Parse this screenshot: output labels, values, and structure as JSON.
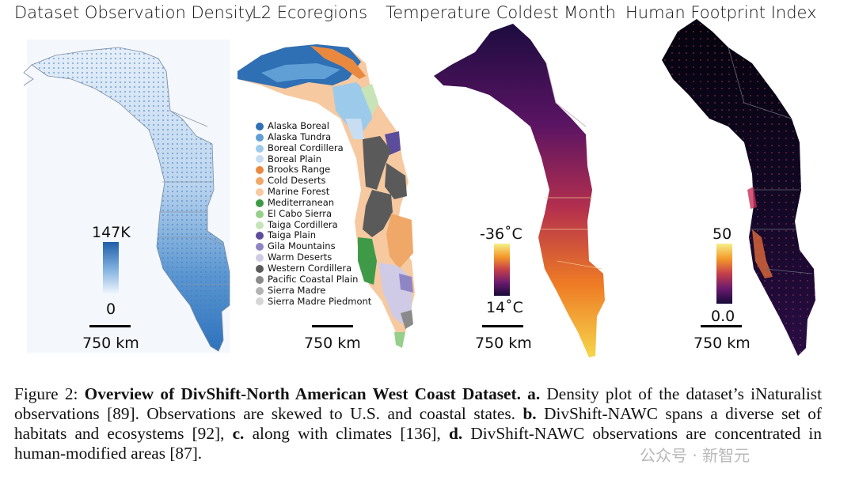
{
  "panels": [
    {
      "title": "Dataset Observation Density",
      "cbar_top": "147K",
      "cbar_bottom": "0",
      "scale": "750 km"
    },
    {
      "title": "L2 Ecoregions",
      "scale": "750 km"
    },
    {
      "title": "Temperature Coldest Month",
      "cbar_top": "-36˚C",
      "cbar_bottom": "14˚C",
      "scale": "750 km"
    },
    {
      "title": "Human Footprint Index",
      "cbar_top": "50",
      "cbar_bottom": "0.0",
      "scale": "750 km"
    }
  ],
  "legend": [
    {
      "label": "Alaska Boreal",
      "color": "#2f6fb4"
    },
    {
      "label": "Alaska Tundra",
      "color": "#5f9fd6"
    },
    {
      "label": "Boreal Cordillera",
      "color": "#9ccaea"
    },
    {
      "label": "Boreal Plain",
      "color": "#c9ddf2"
    },
    {
      "label": "Brooks Range",
      "color": "#e9893f"
    },
    {
      "label": "Cold Deserts",
      "color": "#f0a868"
    },
    {
      "label": "Marine Forest",
      "color": "#f6c9a0"
    },
    {
      "label": "Mediterranean",
      "color": "#3f9a48"
    },
    {
      "label": "El Cabo Sierra",
      "color": "#96cf8a"
    },
    {
      "label": "Taiga Cordillera",
      "color": "#c6e4b8"
    },
    {
      "label": "Taiga Plain",
      "color": "#5b4d9c"
    },
    {
      "label": "Gila Mountains",
      "color": "#8f84c4"
    },
    {
      "label": "Warm Deserts",
      "color": "#cfcbe6"
    },
    {
      "label": "Western Cordillera",
      "color": "#5a5a5a"
    },
    {
      "label": "Pacific Coastal Plain",
      "color": "#8a8a8a"
    },
    {
      "label": "Sierra Madre",
      "color": "#b4b4b4"
    },
    {
      "label": "Sierra Madre Piedmont",
      "color": "#d6d6d6"
    }
  ],
  "caption": {
    "figure_label": "Figure 2:",
    "bold_title": "Overview of DivShift-North American West Coast Dataset.",
    "a_label": "a.",
    "a_text": "Density plot of the dataset’s iNaturalist observations [89]. Observations are skewed to U.S. and coastal states.",
    "b_label": "b.",
    "b_text": "DivShift-NAWC spans a diverse set of habitats and ecosystems [92],",
    "c_label": "c.",
    "c_text": "along with climates [136],",
    "d_label": "d.",
    "d_text": "DivShift-NAWC observations are concentrated in human-modified areas [87]."
  },
  "watermark": "公众号 · 新智元",
  "colors": {
    "density_high": "#1f5ea8",
    "density_low": "#eef4fb",
    "inferno_top": "#f5f08a",
    "inferno_bottom": "#150b37"
  }
}
